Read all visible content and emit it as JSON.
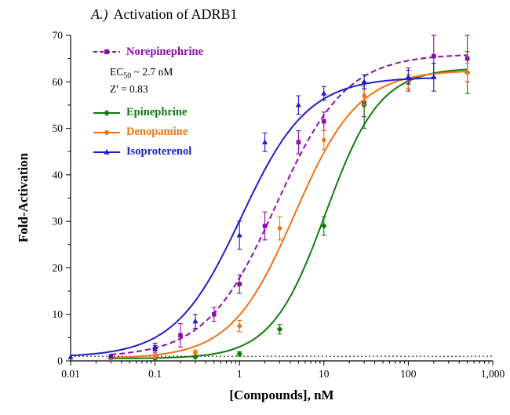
{
  "figure": {
    "title_prefix": "A.)",
    "title": "Activation of ADRB1"
  },
  "legend": {
    "ec50": {
      "pre": "EC",
      "sub": "50",
      "post": " ~ 2.7 nM"
    },
    "zprime": "Z' = 0.83"
  },
  "chart_data": {
    "type": "line",
    "title": "A.) Activation of ADRB1",
    "xlabel": "[Compounds], nM",
    "ylabel": "Fold-Activation",
    "x_scale": "log",
    "xlim": [
      0.01,
      1000
    ],
    "ylim": [
      0,
      70
    ],
    "y_ticks": [
      0,
      10,
      20,
      30,
      40,
      50,
      60,
      70
    ],
    "x_ticks": [
      0.01,
      0.1,
      1,
      10,
      100,
      1000
    ],
    "x_tick_labels": [
      "0.01",
      "0.1",
      "1",
      "10",
      "100",
      "1,000"
    ],
    "baseline_y": 1,
    "grid": false,
    "legend_position": "top-left-inside",
    "annotations": [
      "EC50 ~ 2.7 nM",
      "Z' = 0.83"
    ],
    "series": [
      {
        "name": "Norepinephrine",
        "color": "#8A0DAB",
        "line_style": "dashed",
        "marker": "square",
        "x": [
          0.03,
          0.1,
          0.2,
          0.5,
          1,
          2,
          5,
          10,
          30,
          100,
          200,
          500
        ],
        "y": [
          1.0,
          2.5,
          5.5,
          10.0,
          16.5,
          29.0,
          47.0,
          51.5,
          55.5,
          60.5,
          65.5,
          65.0
        ],
        "err": [
          0.3,
          0.8,
          2.5,
          1.5,
          2.0,
          3.0,
          2.5,
          2.0,
          3.0,
          2.5,
          4.5,
          5.0
        ],
        "fit": {
          "bottom": 0.8,
          "top": 66,
          "ec50": 2.7,
          "hill": 1.05
        }
      },
      {
        "name": "Epinephrine",
        "color": "#0E7C0E",
        "line_style": "solid",
        "marker": "diamond",
        "x": [
          0.03,
          0.1,
          0.3,
          1,
          3,
          10,
          30,
          100,
          500
        ],
        "y": [
          0.5,
          0.5,
          0.8,
          1.5,
          6.8,
          29.0,
          55.0,
          60.0,
          62.0
        ],
        "err": [
          0.2,
          0.2,
          0.3,
          0.5,
          1.0,
          2.0,
          5.0,
          1.5,
          4.5
        ],
        "fit": {
          "bottom": 0.5,
          "top": 63,
          "ec50": 10.5,
          "hill": 1.35
        }
      },
      {
        "name": "Denopamine",
        "color": "#F07311",
        "line_style": "solid",
        "marker": "circle",
        "x": [
          0.03,
          0.1,
          0.3,
          1,
          3,
          10,
          30,
          100,
          500
        ],
        "y": [
          0.5,
          0.8,
          1.8,
          7.5,
          28.5,
          47.5,
          57.0,
          60.0,
          62.0
        ],
        "err": [
          0.2,
          0.3,
          0.5,
          1.2,
          2.5,
          2.0,
          2.0,
          1.5,
          2.0
        ],
        "fit": {
          "bottom": 0.5,
          "top": 62.5,
          "ec50": 4.5,
          "hill": 1.15
        }
      },
      {
        "name": "Isoproterenol",
        "color": "#1F1FC8",
        "line_style": "solid",
        "marker": "triangle",
        "x": [
          0.01,
          0.03,
          0.1,
          0.3,
          1,
          2,
          5,
          10,
          30,
          100,
          200
        ],
        "y": [
          0.8,
          1.0,
          3.0,
          8.5,
          27.0,
          47.0,
          55.0,
          57.5,
          60.0,
          61.0,
          61.0
        ],
        "err": [
          0.2,
          0.3,
          0.8,
          1.5,
          3.0,
          2.0,
          2.0,
          1.5,
          1.5,
          1.5,
          3.0
        ],
        "fit": {
          "bottom": 0.8,
          "top": 61,
          "ec50": 1.05,
          "hill": 1.1
        }
      }
    ]
  }
}
